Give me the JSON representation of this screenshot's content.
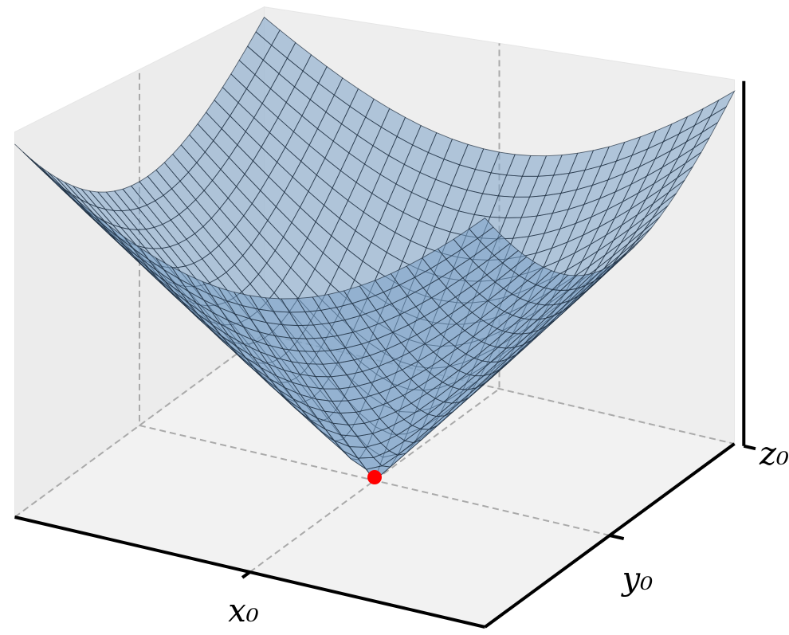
{
  "chart_data": {
    "type": "surface3d",
    "xlim": [
      -1,
      1
    ],
    "ylim": [
      -1,
      1
    ],
    "zlim": [
      0,
      1.46
    ],
    "xticks": [
      {
        "value": 0,
        "label": "x₀"
      }
    ],
    "yticks": [
      {
        "value": 0,
        "label": "y₀"
      }
    ],
    "zticks": [
      {
        "value": 0,
        "label": "z₀"
      }
    ],
    "grid": true,
    "surface_color": "#7ba3c8",
    "point": {
      "x": 0,
      "y": 0,
      "z": 0,
      "color": "#ff0000"
    }
  }
}
